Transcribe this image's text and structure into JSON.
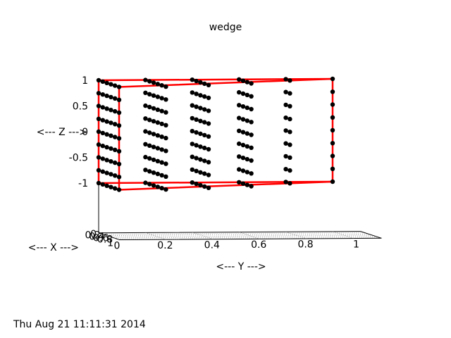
{
  "chart_data": {
    "type": "scatter",
    "title": "wedge",
    "xlabel": "<--- X --->",
    "ylabel": "<--- Y --->",
    "zlabel": "<--- Z --->",
    "x_ticks": [
      "0",
      "0.2",
      "0.4",
      "0.6",
      "0.8",
      "1"
    ],
    "y_ticks": [
      "0",
      "0.2",
      "0.4",
      "0.6",
      "0.8",
      "1"
    ],
    "z_ticks": [
      "1",
      "0.5",
      "0",
      "-0.5",
      "-1"
    ],
    "xlim": [
      0,
      1
    ],
    "ylim": [
      0,
      1
    ],
    "zlim": [
      -1,
      1
    ],
    "grid": true,
    "legend": "none",
    "y_values": [
      0,
      0.2,
      0.4,
      0.6,
      0.8,
      1
    ],
    "z_values": [
      1,
      0.75,
      0.5,
      0.25,
      0,
      -0.25,
      -0.5,
      -0.75,
      -1
    ],
    "x_values_by_y": [
      [
        0,
        0.2,
        0.4,
        0.6,
        0.8,
        1
      ],
      [
        0,
        0.2,
        0.4,
        0.6,
        0.8,
        1
      ],
      [
        0,
        0.2,
        0.4,
        0.6,
        0.8
      ],
      [
        0,
        0.2,
        0.4,
        0.6
      ],
      [
        0,
        0.2
      ],
      [
        0
      ]
    ],
    "edge_color": "#ff0000",
    "point_color": "#000000"
  },
  "timestamp": "Thu Aug 21 11:11:31 2014"
}
